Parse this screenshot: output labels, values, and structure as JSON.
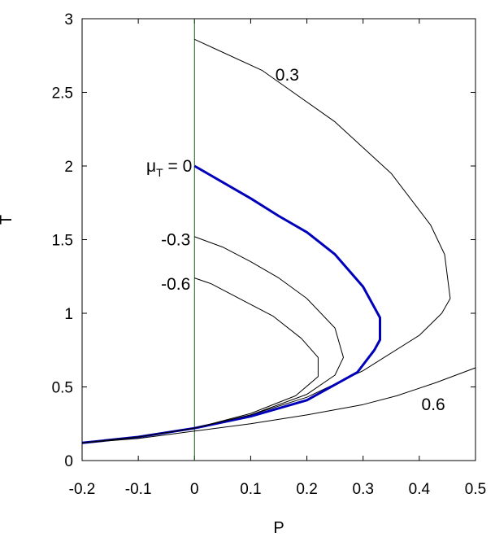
{
  "chart_data": {
    "type": "line",
    "xlabel": "P",
    "ylabel": "T",
    "xlim": [
      -0.2,
      0.5
    ],
    "ylim": [
      0,
      3
    ],
    "xticks": [
      "-0.2",
      "-0.1",
      "0",
      "0.1",
      "0.2",
      "0.3",
      "0.4",
      "0.5"
    ],
    "yticks": [
      "0",
      "0.5",
      "1",
      "1.5",
      "2",
      "2.5",
      "3"
    ],
    "grid": false,
    "legend": "none",
    "vertical_line": {
      "x": 0,
      "color": "#1a5c1a"
    },
    "series": [
      {
        "name": "0.3",
        "color": "#000000",
        "points": [
          [
            -0.2,
            0.12
          ],
          [
            -0.1,
            0.16
          ],
          [
            0,
            0.22
          ],
          [
            0.1,
            0.31
          ],
          [
            0.2,
            0.43
          ],
          [
            0.3,
            0.61
          ],
          [
            0.4,
            0.85
          ],
          [
            0.44,
            1.0
          ],
          [
            0.455,
            1.1
          ],
          [
            0.445,
            1.4
          ],
          [
            0.42,
            1.6
          ],
          [
            0.35,
            1.95
          ],
          [
            0.25,
            2.3
          ],
          [
            0.12,
            2.65
          ],
          [
            0.04,
            2.79
          ],
          [
            0,
            2.86
          ]
        ]
      },
      {
        "name": "μT = 0",
        "color": "#0000bb",
        "points": [
          [
            -0.2,
            0.12
          ],
          [
            -0.1,
            0.16
          ],
          [
            0,
            0.22
          ],
          [
            0.1,
            0.3
          ],
          [
            0.2,
            0.41
          ],
          [
            0.29,
            0.6
          ],
          [
            0.32,
            0.75
          ],
          [
            0.33,
            0.82
          ],
          [
            0.33,
            0.97
          ],
          [
            0.3,
            1.18
          ],
          [
            0.25,
            1.4
          ],
          [
            0.2,
            1.55
          ],
          [
            0.15,
            1.66
          ],
          [
            0.1,
            1.78
          ],
          [
            0.05,
            1.89
          ],
          [
            0,
            2.0
          ]
        ]
      },
      {
        "name": "-0.3",
        "color": "#000000",
        "points": [
          [
            -0.2,
            0.12
          ],
          [
            -0.1,
            0.16
          ],
          [
            0,
            0.22
          ],
          [
            0.1,
            0.31
          ],
          [
            0.2,
            0.45
          ],
          [
            0.25,
            0.58
          ],
          [
            0.265,
            0.7
          ],
          [
            0.25,
            0.9
          ],
          [
            0.2,
            1.1
          ],
          [
            0.15,
            1.24
          ],
          [
            0.1,
            1.35
          ],
          [
            0.05,
            1.45
          ],
          [
            0,
            1.52
          ]
        ]
      },
      {
        "name": "-0.6",
        "color": "#000000",
        "points": [
          [
            -0.2,
            0.12
          ],
          [
            -0.1,
            0.16
          ],
          [
            0,
            0.22
          ],
          [
            0.1,
            0.32
          ],
          [
            0.18,
            0.44
          ],
          [
            0.22,
            0.57
          ],
          [
            0.22,
            0.7
          ],
          [
            0.19,
            0.83
          ],
          [
            0.14,
            0.98
          ],
          [
            0.08,
            1.1
          ],
          [
            0.03,
            1.2
          ],
          [
            0,
            1.24
          ]
        ]
      },
      {
        "name": "0.6",
        "color": "#000000",
        "points": [
          [
            -0.2,
            0.12
          ],
          [
            -0.1,
            0.15
          ],
          [
            0,
            0.2
          ],
          [
            0.1,
            0.25
          ],
          [
            0.2,
            0.31
          ],
          [
            0.3,
            0.38
          ],
          [
            0.36,
            0.44
          ],
          [
            0.43,
            0.53
          ],
          [
            0.5,
            0.63
          ]
        ]
      }
    ],
    "labels": [
      {
        "text": "0.3",
        "x": 0.165,
        "y": 2.62,
        "anchor": "middle"
      },
      {
        "text": "-0.3",
        "x": 0.0,
        "y": 1.5,
        "anchor": "end"
      },
      {
        "text": "-0.6",
        "x": 0.0,
        "y": 1.2,
        "anchor": "end"
      },
      {
        "text": "0.6",
        "x": 0.425,
        "y": 0.38,
        "anchor": "middle"
      }
    ],
    "mu_label": {
      "symbol": "μ",
      "subscript": "T",
      "rest": " = 0",
      "x": 0.0,
      "y": 2.0
    }
  }
}
